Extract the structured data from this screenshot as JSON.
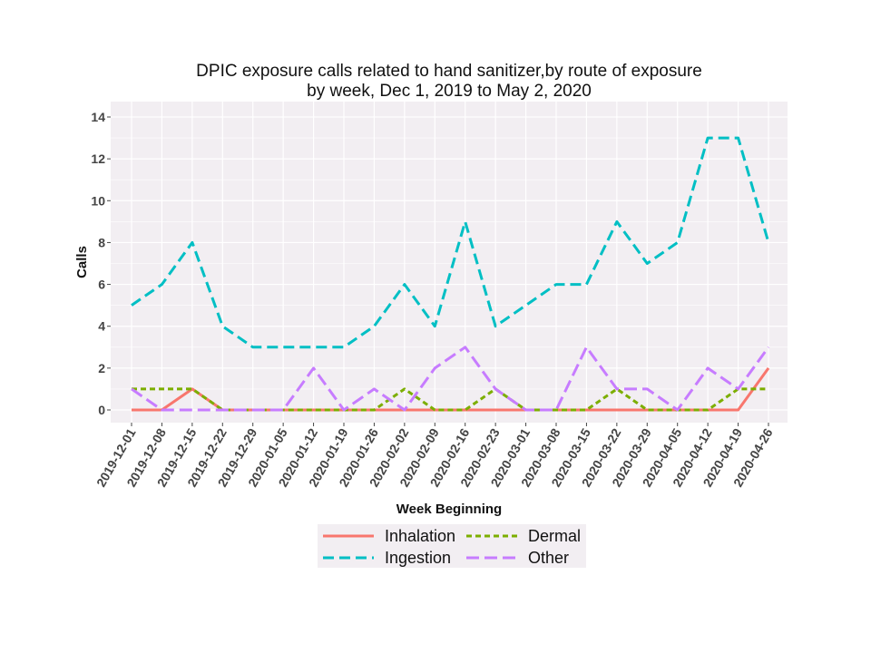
{
  "chart_data": {
    "type": "line",
    "title_lines": [
      "DPIC exposure calls related to hand sanitizer,by route of exposure",
      "by week, Dec 1, 2019 to May 2, 2020"
    ],
    "xlabel": "Week Beginning",
    "ylabel": "Calls",
    "ylim": [
      0,
      14
    ],
    "yticks": [
      0,
      2,
      4,
      6,
      8,
      10,
      12,
      14
    ],
    "grid": true,
    "legend_position": "bottom",
    "categories": [
      "2019-12-01",
      "2019-12-08",
      "2019-12-15",
      "2019-12-22",
      "2019-12-29",
      "2020-01-05",
      "2020-01-12",
      "2020-01-19",
      "2020-01-26",
      "2020-02-02",
      "2020-02-09",
      "2020-02-16",
      "2020-02-23",
      "2020-03-01",
      "2020-03-08",
      "2020-03-15",
      "2020-03-22",
      "2020-03-29",
      "2020-04-05",
      "2020-04-12",
      "2020-04-19",
      "2020-04-26"
    ],
    "series": [
      {
        "name": "Inhalation",
        "color": "#f8766d",
        "dash": "solid",
        "values": [
          0,
          0,
          1,
          0,
          0,
          0,
          0,
          0,
          0,
          0,
          0,
          0,
          0,
          0,
          0,
          0,
          0,
          0,
          0,
          0,
          0,
          2
        ]
      },
      {
        "name": "Ingestion",
        "color": "#00bfc4",
        "dash": "dashed",
        "values": [
          5,
          6,
          8,
          4,
          3,
          3,
          3,
          3,
          4,
          6,
          4,
          9,
          4,
          5,
          6,
          6,
          9,
          7,
          8,
          13,
          13,
          8
        ]
      },
      {
        "name": "Dermal",
        "color": "#7cae00",
        "dash": "dotted",
        "values": [
          1,
          1,
          1,
          0,
          0,
          0,
          0,
          0,
          0,
          1,
          0,
          0,
          1,
          0,
          0,
          0,
          1,
          0,
          0,
          0,
          1,
          1
        ]
      },
      {
        "name": "Other",
        "color": "#c77cff",
        "dash": "longdash",
        "values": [
          1,
          0,
          0,
          0,
          0,
          0,
          2,
          0,
          1,
          0,
          2,
          3,
          1,
          0,
          0,
          3,
          1,
          1,
          0,
          2,
          1,
          3
        ]
      }
    ]
  }
}
